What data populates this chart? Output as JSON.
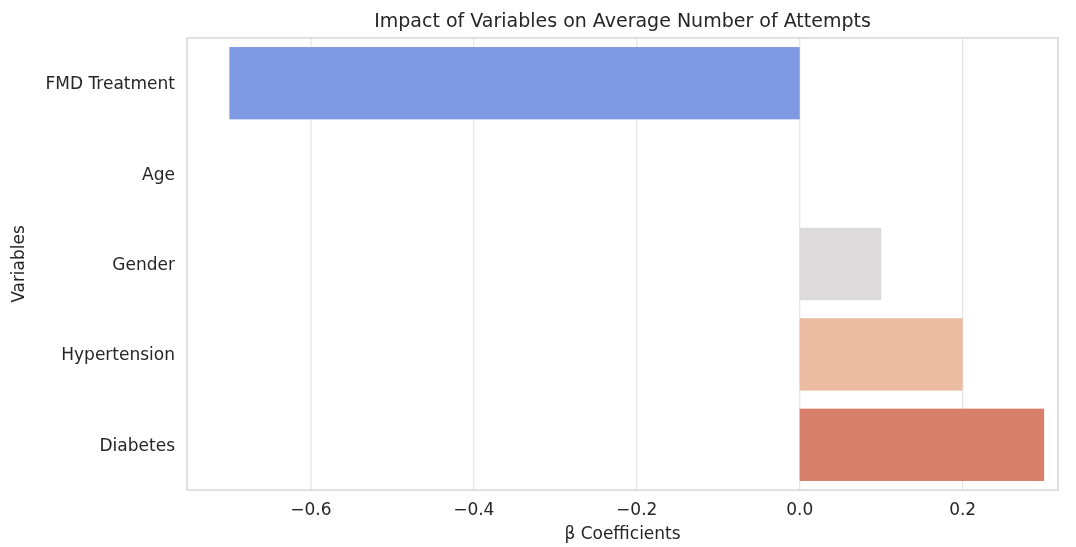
{
  "chart_data": {
    "type": "bar",
    "orientation": "horizontal",
    "title": "Impact of Variables on Average Number of Attempts",
    "xlabel": "β Coefficients",
    "ylabel": "Variables",
    "categories": [
      "FMD Treatment",
      "Age",
      "Gender",
      "Hypertension",
      "Diabetes"
    ],
    "values": [
      -0.7,
      0,
      0.1,
      0.2,
      0.3
    ],
    "colors": [
      "#7f9ae3",
      "#f4f4f4",
      "#dcdadb",
      "#ecbca2",
      "#d77f6b"
    ],
    "xlim": [
      -0.752,
      0.317
    ],
    "xticks": [
      {
        "value": -0.6,
        "label": "−0.6"
      },
      {
        "value": -0.4,
        "label": "−0.4"
      },
      {
        "value": -0.2,
        "label": "−0.2"
      },
      {
        "value": 0,
        "label": "0.0"
      },
      {
        "value": 0.2,
        "label": "0.2"
      }
    ],
    "grid": "x"
  }
}
